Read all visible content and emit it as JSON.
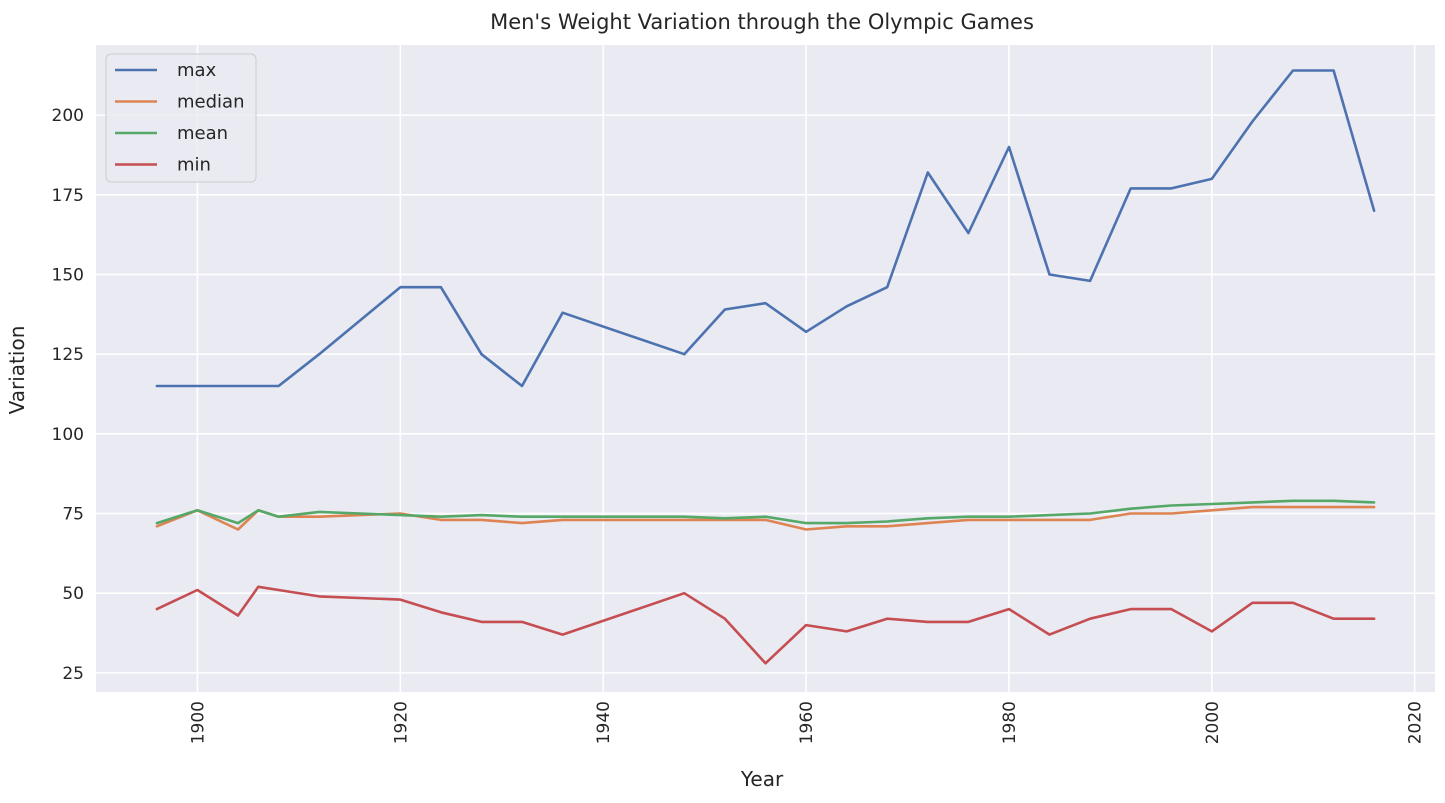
{
  "chart_data": {
    "type": "line",
    "title": "Men's Weight Variation through the Olympic Games",
    "xlabel": "Year",
    "ylabel": "Variation",
    "xlim": [
      1890.0,
      2022.0
    ],
    "ylim": [
      19.0,
      222.0
    ],
    "xticks": [
      1900,
      1920,
      1940,
      1960,
      1980,
      2000,
      2020
    ],
    "yticks": [
      25,
      50,
      75,
      100,
      125,
      150,
      175,
      200
    ],
    "grid": true,
    "legend_position": "top-left",
    "x": [
      1896,
      1900,
      1904,
      1906,
      1908,
      1912,
      1920,
      1924,
      1928,
      1932,
      1936,
      1948,
      1952,
      1956,
      1960,
      1964,
      1968,
      1972,
      1976,
      1980,
      1984,
      1988,
      1992,
      1996,
      2000,
      2004,
      2008,
      2012,
      2016
    ],
    "series": [
      {
        "name": "max",
        "color": "#4c72b0",
        "values": [
          115,
          115,
          115,
          115,
          115,
          125,
          146,
          146,
          125,
          115,
          138,
          125,
          139,
          141,
          132,
          140,
          146,
          182,
          163,
          190,
          150,
          148,
          177,
          177,
          180,
          198,
          214,
          214,
          170
        ]
      },
      {
        "name": "median",
        "color": "#dd8452",
        "values": [
          71,
          76,
          70,
          76,
          74,
          74,
          75,
          73,
          73,
          72,
          73,
          73,
          73,
          73,
          70,
          71,
          71,
          72,
          73,
          73,
          73,
          73,
          75,
          75,
          76,
          77,
          77,
          77,
          77
        ]
      },
      {
        "name": "mean",
        "color": "#55a868",
        "values": [
          72,
          76,
          72,
          76,
          74,
          75.5,
          74.5,
          74,
          74.5,
          74,
          74,
          74,
          73.5,
          74,
          72,
          72,
          72.5,
          73.5,
          74,
          74,
          74.5,
          75,
          76.5,
          77.5,
          78,
          78.5,
          79,
          79,
          78.5
        ]
      },
      {
        "name": "min",
        "color": "#c44e52",
        "values": [
          45,
          51,
          43,
          52,
          51,
          49,
          48,
          44,
          41,
          41,
          37,
          50,
          42,
          28,
          40,
          38,
          42,
          41,
          41,
          45,
          37,
          42,
          45,
          45,
          38,
          47,
          47,
          42,
          42
        ]
      }
    ]
  }
}
